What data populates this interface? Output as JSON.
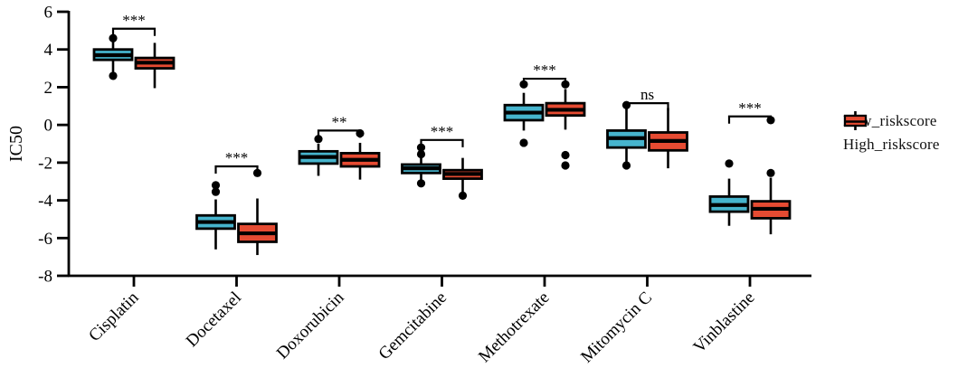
{
  "chart_data": {
    "type": "boxplot",
    "title": "",
    "xlabel": "",
    "ylabel": "IC50",
    "ylim": [
      -8,
      6
    ],
    "yticks": [
      6,
      4,
      2,
      0,
      -2,
      -4,
      -6,
      -8
    ],
    "grid": false,
    "legend_position": "right",
    "categories": [
      "Cisplatin",
      "Docetaxel",
      "Doxorubicin",
      "Gemcitabine",
      "Methotrexate",
      "Mitomycin C",
      "Vinblastine"
    ],
    "significance": [
      {
        "label": "***",
        "y": 5.1
      },
      {
        "label": "***",
        "y": -2.2
      },
      {
        "label": "**",
        "y": -0.3
      },
      {
        "label": "***",
        "y": -0.8
      },
      {
        "label": "***",
        "y": 2.45
      },
      {
        "label": "ns",
        "y": 1.15
      },
      {
        "label": "***",
        "y": 0.45
      }
    ],
    "series": [
      {
        "name": "Low_riskscore",
        "color": "#46b4cd",
        "boxes": [
          {
            "whisker_low": 2.8,
            "q1": 3.45,
            "median": 3.7,
            "q3": 4.0,
            "whisker_high": 4.4,
            "outliers": [
              4.6,
              2.6
            ]
          },
          {
            "whisker_low": -6.6,
            "q1": -5.5,
            "median": -5.15,
            "q3": -4.8,
            "whisker_high": -3.95,
            "outliers": [
              -3.2,
              -3.55
            ]
          },
          {
            "whisker_low": -2.7,
            "q1": -2.05,
            "median": -1.7,
            "q3": -1.4,
            "whisker_high": -1.0,
            "outliers": [
              -0.75
            ]
          },
          {
            "whisker_low": -2.95,
            "q1": -2.55,
            "median": -2.3,
            "q3": -2.1,
            "whisker_high": -1.7,
            "outliers": [
              -1.2,
              -1.55,
              -3.1
            ]
          },
          {
            "whisker_low": -0.3,
            "q1": 0.25,
            "median": 0.65,
            "q3": 1.05,
            "whisker_high": 1.7,
            "outliers": [
              2.15,
              -0.95
            ]
          },
          {
            "whisker_low": -2.0,
            "q1": -1.2,
            "median": -0.7,
            "q3": -0.3,
            "whisker_high": 0.9,
            "outliers": [
              1.05,
              -2.15
            ]
          },
          {
            "whisker_low": -5.35,
            "q1": -4.6,
            "median": -4.25,
            "q3": -3.8,
            "whisker_high": -2.85,
            "outliers": [
              -2.05
            ]
          }
        ]
      },
      {
        "name": "High_riskscore",
        "color": "#e64b32",
        "boxes": [
          {
            "whisker_low": 1.95,
            "q1": 3.0,
            "median": 3.3,
            "q3": 3.55,
            "whisker_high": 4.35,
            "outliers": []
          },
          {
            "whisker_low": -6.9,
            "q1": -6.2,
            "median": -5.75,
            "q3": -5.25,
            "whisker_high": -3.9,
            "outliers": [
              -2.55
            ]
          },
          {
            "whisker_low": -2.9,
            "q1": -2.2,
            "median": -1.85,
            "q3": -1.5,
            "whisker_high": -0.95,
            "outliers": [
              -0.45
            ]
          },
          {
            "whisker_low": -3.55,
            "q1": -2.85,
            "median": -2.6,
            "q3": -2.4,
            "whisker_high": -1.75,
            "outliers": [
              -3.75
            ]
          },
          {
            "whisker_low": -0.25,
            "q1": 0.5,
            "median": 0.8,
            "q3": 1.15,
            "whisker_high": 1.9,
            "outliers": [
              2.15,
              -1.6,
              -2.15
            ]
          },
          {
            "whisker_low": -2.3,
            "q1": -1.35,
            "median": -0.85,
            "q3": -0.4,
            "whisker_high": 0.9,
            "outliers": []
          },
          {
            "whisker_low": -5.8,
            "q1": -4.95,
            "median": -4.45,
            "q3": -4.05,
            "whisker_high": -2.8,
            "outliers": [
              0.25,
              -2.55
            ]
          }
        ]
      }
    ]
  }
}
